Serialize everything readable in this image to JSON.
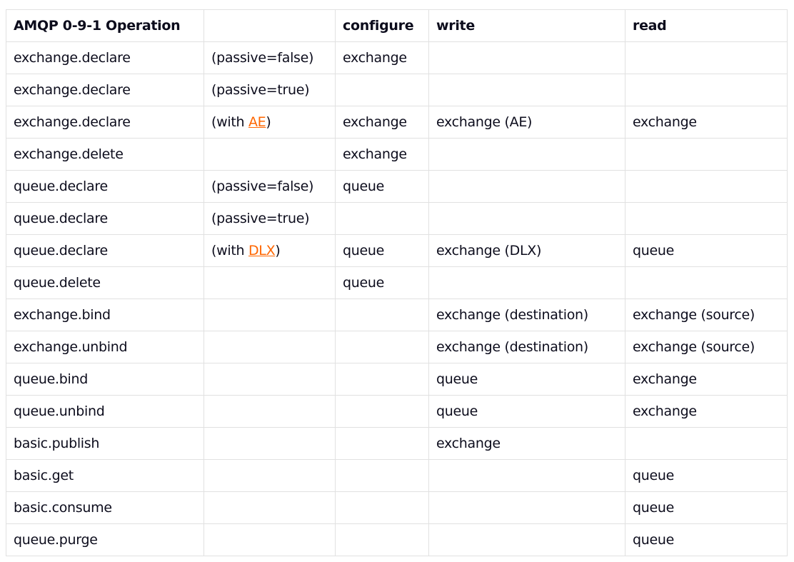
{
  "link_color": "#ff6600",
  "headers": [
    "AMQP 0-9-1 Operation",
    "",
    "configure",
    "write",
    "read"
  ],
  "rows": [
    {
      "op": "exchange.declare",
      "note": {
        "pre": "(passive=false)",
        "link": "",
        "post": ""
      },
      "configure": "exchange",
      "write": "",
      "read": ""
    },
    {
      "op": "exchange.declare",
      "note": {
        "pre": "(passive=true)",
        "link": "",
        "post": ""
      },
      "configure": "",
      "write": "",
      "read": ""
    },
    {
      "op": "exchange.declare",
      "note": {
        "pre": "(with ",
        "link": "AE",
        "post": ")"
      },
      "configure": "exchange",
      "write": "exchange (AE)",
      "read": "exchange"
    },
    {
      "op": "exchange.delete",
      "note": {
        "pre": "",
        "link": "",
        "post": ""
      },
      "configure": "exchange",
      "write": "",
      "read": ""
    },
    {
      "op": "queue.declare",
      "note": {
        "pre": "(passive=false)",
        "link": "",
        "post": ""
      },
      "configure": "queue",
      "write": "",
      "read": ""
    },
    {
      "op": "queue.declare",
      "note": {
        "pre": "(passive=true)",
        "link": "",
        "post": ""
      },
      "configure": "",
      "write": "",
      "read": ""
    },
    {
      "op": "queue.declare",
      "note": {
        "pre": "(with ",
        "link": "DLX",
        "post": ")"
      },
      "configure": "queue",
      "write": "exchange (DLX)",
      "read": "queue"
    },
    {
      "op": "queue.delete",
      "note": {
        "pre": "",
        "link": "",
        "post": ""
      },
      "configure": "queue",
      "write": "",
      "read": ""
    },
    {
      "op": "exchange.bind",
      "note": {
        "pre": "",
        "link": "",
        "post": ""
      },
      "configure": "",
      "write": "exchange (destination)",
      "read": "exchange (source)"
    },
    {
      "op": "exchange.unbind",
      "note": {
        "pre": "",
        "link": "",
        "post": ""
      },
      "configure": "",
      "write": "exchange (destination)",
      "read": "exchange (source)"
    },
    {
      "op": "queue.bind",
      "note": {
        "pre": "",
        "link": "",
        "post": ""
      },
      "configure": "",
      "write": "queue",
      "read": "exchange"
    },
    {
      "op": "queue.unbind",
      "note": {
        "pre": "",
        "link": "",
        "post": ""
      },
      "configure": "",
      "write": "queue",
      "read": "exchange"
    },
    {
      "op": "basic.publish",
      "note": {
        "pre": "",
        "link": "",
        "post": ""
      },
      "configure": "",
      "write": "exchange",
      "read": ""
    },
    {
      "op": "basic.get",
      "note": {
        "pre": "",
        "link": "",
        "post": ""
      },
      "configure": "",
      "write": "",
      "read": "queue"
    },
    {
      "op": "basic.consume",
      "note": {
        "pre": "",
        "link": "",
        "post": ""
      },
      "configure": "",
      "write": "",
      "read": "queue"
    },
    {
      "op": "queue.purge",
      "note": {
        "pre": "",
        "link": "",
        "post": ""
      },
      "configure": "",
      "write": "",
      "read": "queue"
    }
  ]
}
